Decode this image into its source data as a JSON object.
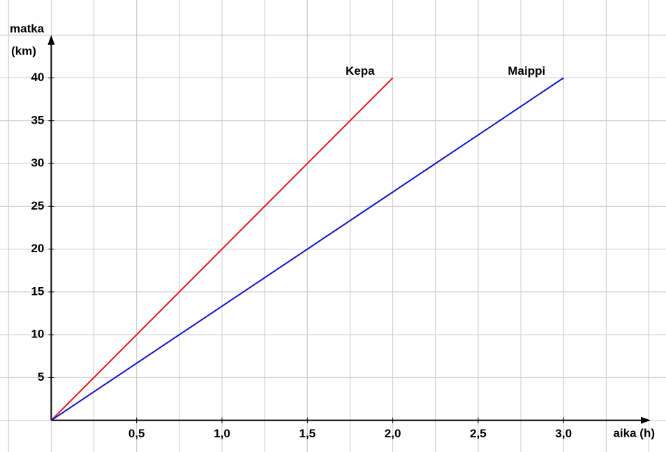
{
  "chart_data": {
    "type": "line",
    "xlabel": "aika (h)",
    "ylabel": [
      "matka",
      "(km)"
    ],
    "xlim": [
      -0.3,
      3.6
    ],
    "ylim": [
      -3.7,
      49.1
    ],
    "xticks": [
      {
        "value": 0.5,
        "label": "0,5"
      },
      {
        "value": 1,
        "label": "1,0"
      },
      {
        "value": 1.5,
        "label": "1,5"
      },
      {
        "value": 2,
        "label": "2,0"
      },
      {
        "value": 2.5,
        "label": "2,5"
      },
      {
        "value": 3,
        "label": "3,0"
      }
    ],
    "yticks": [
      5,
      10,
      15,
      20,
      25,
      30,
      35,
      40
    ],
    "xgrid": [
      -0.25,
      0,
      0.25,
      0.5,
      0.75,
      1,
      1.25,
      1.5,
      1.75,
      2,
      2.25,
      2.5,
      2.75,
      3,
      3.25,
      3.5
    ],
    "ygrid": [
      0,
      5,
      10,
      15,
      20,
      25,
      30,
      35,
      40,
      45
    ],
    "series": [
      {
        "name": "Kepa",
        "color": "#e31a1c",
        "x": [
          0,
          2
        ],
        "values": [
          0,
          40
        ]
      },
      {
        "name": "Maippi",
        "color": "#1010c8",
        "x": [
          0,
          3
        ],
        "values": [
          0,
          40
        ]
      }
    ]
  }
}
